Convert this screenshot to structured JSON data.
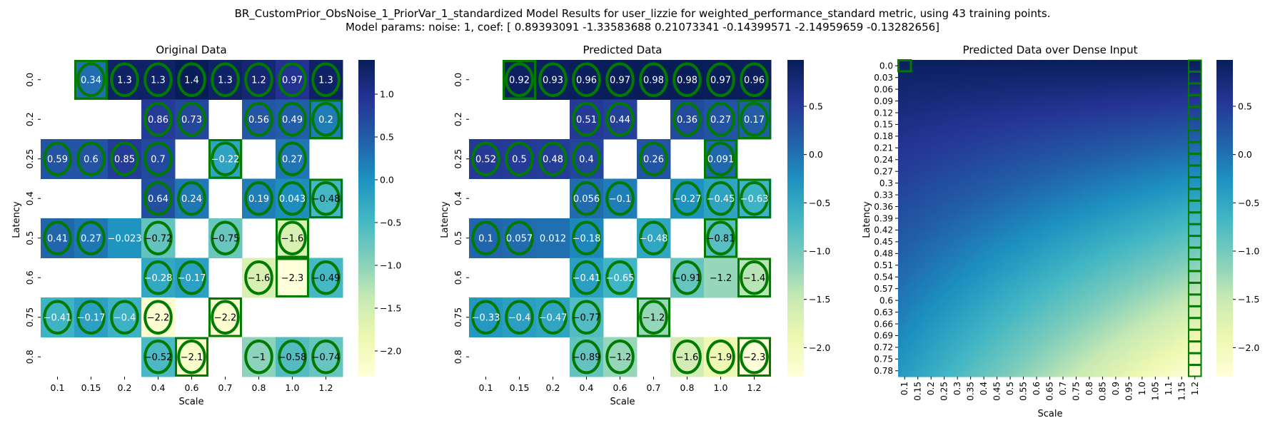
{
  "figure": {
    "suptitle_line1": "BR_CustomPrior_ObsNoise_1_PriorVar_1_standardized Model Results for user_lizzie for weighted_performance_standard metric, using 43 training points.",
    "suptitle_line2": "Model params: noise: 1, coef: [ 0.89393091 -1.33583688  0.21073341 -0.14399571 -2.14959659 -0.13282656]"
  },
  "colors": {
    "colormap": [
      "#ffffd9",
      "#edf8b1",
      "#c7e9b4",
      "#7fcdbb",
      "#41b6c4",
      "#1d91c0",
      "#225ea8",
      "#253494",
      "#081d58"
    ],
    "marker": "#007a00"
  },
  "chart_data": [
    {
      "type": "heatmap",
      "title": "Original Data",
      "xlabel": "Scale",
      "ylabel": "Latency",
      "x": [
        "0.1",
        "0.15",
        "0.2",
        "0.4",
        "0.6",
        "0.7",
        "0.8",
        "1.0",
        "1.2"
      ],
      "y": [
        "0.0",
        "0.2",
        "0.25",
        "0.4",
        "0.5",
        "0.6",
        "0.75",
        "0.8"
      ],
      "values": [
        [
          null,
          0.34,
          1.3,
          1.3,
          1.4,
          1.3,
          1.2,
          0.97,
          1.3
        ],
        [
          null,
          null,
          null,
          0.86,
          0.73,
          null,
          0.56,
          0.49,
          0.2
        ],
        [
          0.59,
          0.6,
          0.85,
          0.7,
          null,
          -0.22,
          null,
          0.27,
          null
        ],
        [
          null,
          null,
          null,
          0.64,
          0.24,
          null,
          0.19,
          0.043,
          -0.48
        ],
        [
          0.41,
          0.27,
          -0.023,
          -0.72,
          null,
          -0.75,
          null,
          -1.6,
          null
        ],
        [
          null,
          null,
          null,
          -0.28,
          -0.17,
          null,
          -1.6,
          -2.3,
          -0.49
        ],
        [
          -0.41,
          -0.17,
          -0.4,
          -2.2,
          null,
          -2.2,
          null,
          null,
          null
        ],
        [
          null,
          null,
          null,
          -0.52,
          -2.1,
          null,
          -1,
          -0.58,
          -0.74
        ]
      ],
      "vmin": -2.3,
      "vmax": 1.4,
      "colorbar_ticks": [
        "1.0",
        "0.5",
        "0.0",
        "−0.5",
        "−1.0",
        "−1.5",
        "−2.0"
      ],
      "colorbar_tick_values": [
        1.0,
        0.5,
        0.0,
        -0.5,
        -1.0,
        -1.5,
        -2.0
      ],
      "circled": [
        [
          0,
          1
        ],
        [
          0,
          2
        ],
        [
          0,
          3
        ],
        [
          0,
          4
        ],
        [
          0,
          5
        ],
        [
          0,
          6
        ],
        [
          0,
          7
        ],
        [
          0,
          8
        ],
        [
          1,
          3
        ],
        [
          1,
          4
        ],
        [
          1,
          6
        ],
        [
          1,
          7
        ],
        [
          1,
          8
        ],
        [
          2,
          0
        ],
        [
          2,
          1
        ],
        [
          2,
          2
        ],
        [
          2,
          3
        ],
        [
          2,
          5
        ],
        [
          2,
          7
        ],
        [
          3,
          3
        ],
        [
          3,
          4
        ],
        [
          3,
          6
        ],
        [
          3,
          7
        ],
        [
          3,
          8
        ],
        [
          4,
          0
        ],
        [
          4,
          1
        ],
        [
          4,
          3
        ],
        [
          4,
          5
        ],
        [
          4,
          7
        ],
        [
          5,
          3
        ],
        [
          5,
          4
        ],
        [
          5,
          6
        ],
        [
          5,
          8
        ],
        [
          6,
          0
        ],
        [
          6,
          1
        ],
        [
          6,
          2
        ],
        [
          6,
          3
        ],
        [
          6,
          5
        ],
        [
          7,
          3
        ],
        [
          7,
          4
        ],
        [
          7,
          6
        ],
        [
          7,
          7
        ],
        [
          7,
          8
        ]
      ],
      "boxed": [
        [
          0,
          1
        ],
        [
          1,
          8
        ],
        [
          2,
          5
        ],
        [
          3,
          8
        ],
        [
          4,
          7
        ],
        [
          5,
          7
        ],
        [
          6,
          5
        ],
        [
          7,
          4
        ]
      ]
    },
    {
      "type": "heatmap",
      "title": "Predicted Data",
      "xlabel": "Scale",
      "ylabel": "Latency",
      "x": [
        "0.1",
        "0.15",
        "0.2",
        "0.4",
        "0.6",
        "0.7",
        "0.8",
        "1.0",
        "1.2"
      ],
      "y": [
        "0.0",
        "0.2",
        "0.25",
        "0.4",
        "0.5",
        "0.6",
        "0.75",
        "0.8"
      ],
      "values": [
        [
          null,
          0.92,
          0.93,
          0.96,
          0.97,
          0.98,
          0.98,
          0.97,
          0.96
        ],
        [
          null,
          null,
          null,
          0.51,
          0.44,
          null,
          0.36,
          0.27,
          0.17
        ],
        [
          0.52,
          0.5,
          0.48,
          0.4,
          null,
          0.26,
          null,
          0.091,
          null
        ],
        [
          null,
          null,
          null,
          0.056,
          -0.1,
          null,
          -0.27,
          -0.45,
          -0.63
        ],
        [
          0.1,
          0.057,
          0.012,
          -0.18,
          null,
          -0.48,
          null,
          -0.81,
          null
        ],
        [
          null,
          null,
          null,
          -0.41,
          -0.65,
          null,
          -0.91,
          -1.2,
          -1.4
        ],
        [
          -0.33,
          -0.4,
          -0.47,
          -0.77,
          null,
          -1.2,
          null,
          null,
          null
        ],
        [
          null,
          null,
          null,
          -0.89,
          -1.2,
          null,
          -1.6,
          -1.9,
          -2.3
        ]
      ],
      "vmin": -2.3,
      "vmax": 0.98,
      "colorbar_ticks": [
        "0.5",
        "0.0",
        "−0.5",
        "−1.0",
        "−1.5",
        "−2.0"
      ],
      "colorbar_tick_values": [
        0.5,
        0.0,
        -0.5,
        -1.0,
        -1.5,
        -2.0
      ],
      "circled": [
        [
          0,
          1
        ],
        [
          0,
          2
        ],
        [
          0,
          3
        ],
        [
          0,
          4
        ],
        [
          0,
          5
        ],
        [
          0,
          6
        ],
        [
          0,
          7
        ],
        [
          0,
          8
        ],
        [
          1,
          3
        ],
        [
          1,
          4
        ],
        [
          1,
          6
        ],
        [
          1,
          7
        ],
        [
          1,
          8
        ],
        [
          2,
          0
        ],
        [
          2,
          1
        ],
        [
          2,
          2
        ],
        [
          2,
          3
        ],
        [
          2,
          5
        ],
        [
          2,
          7
        ],
        [
          3,
          3
        ],
        [
          3,
          4
        ],
        [
          3,
          6
        ],
        [
          3,
          7
        ],
        [
          3,
          8
        ],
        [
          4,
          0
        ],
        [
          4,
          1
        ],
        [
          4,
          3
        ],
        [
          4,
          5
        ],
        [
          4,
          7
        ],
        [
          5,
          3
        ],
        [
          5,
          4
        ],
        [
          5,
          6
        ],
        [
          5,
          8
        ],
        [
          6,
          0
        ],
        [
          6,
          1
        ],
        [
          6,
          2
        ],
        [
          6,
          3
        ],
        [
          6,
          5
        ],
        [
          7,
          3
        ],
        [
          7,
          4
        ],
        [
          7,
          6
        ],
        [
          7,
          7
        ],
        [
          7,
          8
        ]
      ],
      "boxed": [
        [
          0,
          1
        ],
        [
          1,
          8
        ],
        [
          2,
          7
        ],
        [
          3,
          8
        ],
        [
          4,
          7
        ],
        [
          5,
          8
        ],
        [
          6,
          5
        ],
        [
          7,
          8
        ]
      ]
    },
    {
      "type": "heatmap",
      "title": "Predicted Data over Dense Input",
      "xlabel": "Scale",
      "ylabel": "Latency",
      "x": [
        "0.1",
        "0.15",
        "0.2",
        "0.25",
        "0.3",
        "0.35",
        "0.4",
        "0.45",
        "0.5",
        "0.55",
        "0.6",
        "0.65",
        "0.7",
        "0.75",
        "0.8",
        "0.85",
        "0.9",
        "0.95",
        "1.0",
        "1.05",
        "1.1",
        "1.15",
        "1.2"
      ],
      "y": [
        "0.0",
        "0.03",
        "0.06",
        "0.09",
        "0.12",
        "0.15",
        "0.18",
        "0.21",
        "0.24",
        "0.27",
        "0.3",
        "0.33",
        "0.36",
        "0.39",
        "0.42",
        "0.45",
        "0.48",
        "0.51",
        "0.54",
        "0.57",
        "0.6",
        "0.63",
        "0.66",
        "0.69",
        "0.72",
        "0.75",
        "0.78"
      ],
      "corner_values": {
        "top_left": 0.93,
        "top_right": 0.96,
        "bottom_left": -0.35,
        "bottom_right": -2.3
      },
      "vmin": -2.3,
      "vmax": 0.98,
      "colorbar_ticks": [
        "0.5",
        "0.0",
        "−0.5",
        "−1.0",
        "−1.5",
        "−2.0"
      ],
      "colorbar_tick_values": [
        0.5,
        0.0,
        -0.5,
        -1.0,
        -1.5,
        -2.0
      ],
      "marked_cells": "top-left cell and the full right-most column"
    }
  ]
}
